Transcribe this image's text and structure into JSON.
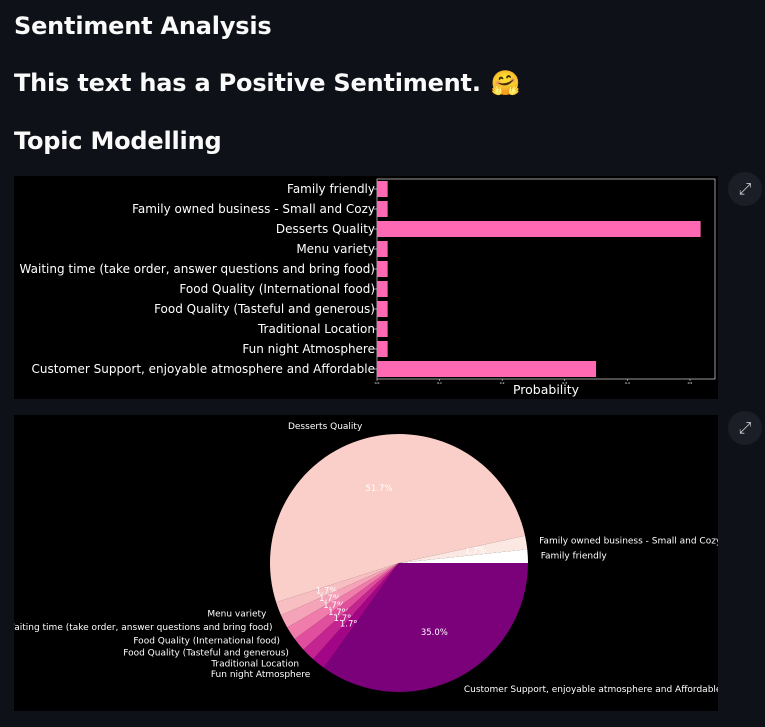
{
  "headers": {
    "sentiment_title": "Sentiment Analysis",
    "sentiment_result": "This text has a Positive Sentiment.",
    "sentiment_emoji": "🤗",
    "topic_title": "Topic Modelling"
  },
  "icons": {
    "expand": "expand-icon"
  },
  "colors": {
    "page_bg": "#0e1117",
    "bar": "#ff69b4",
    "pie": [
      "#ffffff",
      "#fbe8e3",
      "#fbcfc9",
      "#f8bfc3",
      "#f5a3b9",
      "#f07cab",
      "#e04f9d",
      "#c42490",
      "#a20586",
      "#7a017a",
      "#4f006b"
    ]
  },
  "chart_data": [
    {
      "type": "bar",
      "orientation": "horizontal",
      "categories": [
        "Family friendly",
        "Family owned business - Small and Cozy",
        "Desserts Quality",
        "Menu variety",
        "Waiting time (take order, answer questions and bring food)",
        "Food Quality (International food)",
        "Food Quality (Tasteful and generous)",
        "Traditional Location",
        "Fun night Atmosphere",
        "Customer Support, enjoyable atmosphere and Affordable"
      ],
      "values": [
        0.017,
        0.017,
        0.517,
        0.017,
        0.017,
        0.017,
        0.017,
        0.017,
        0.017,
        0.35
      ],
      "xlabel": "Probability",
      "xticks": [
        "0.0",
        "0.1",
        "0.2",
        "0.3",
        "0.4",
        "0.5"
      ],
      "xlim": [
        0,
        0.54
      ]
    },
    {
      "type": "pie",
      "slices": [
        {
          "label": "Family friendly",
          "value": 1.7,
          "pct": ""
        },
        {
          "label": "Family owned business - Small and Cozy",
          "value": 1.7,
          "pct": "1.7%"
        },
        {
          "label": "Desserts Quality",
          "value": 51.7,
          "pct": "51.7%"
        },
        {
          "label": "Menu variety",
          "value": 1.7,
          "pct": "1.7%"
        },
        {
          "label": "Waiting time (take order, answer questions and bring food)",
          "value": 1.7,
          "pct": "1.7%"
        },
        {
          "label": "Food Quality (International food)",
          "value": 1.7,
          "pct": "1.7%"
        },
        {
          "label": "Food Quality (Tasteful and generous)",
          "value": 1.7,
          "pct": "1.7%"
        },
        {
          "label": "Traditional Location",
          "value": 1.7,
          "pct": "1.7%"
        },
        {
          "label": "Fun night Atmosphere",
          "value": 1.7,
          "pct": "1.7%"
        },
        {
          "label": "Customer Support, enjoyable atmosphere and Affordable",
          "value": 35.0,
          "pct": "35.0%"
        }
      ]
    }
  ]
}
